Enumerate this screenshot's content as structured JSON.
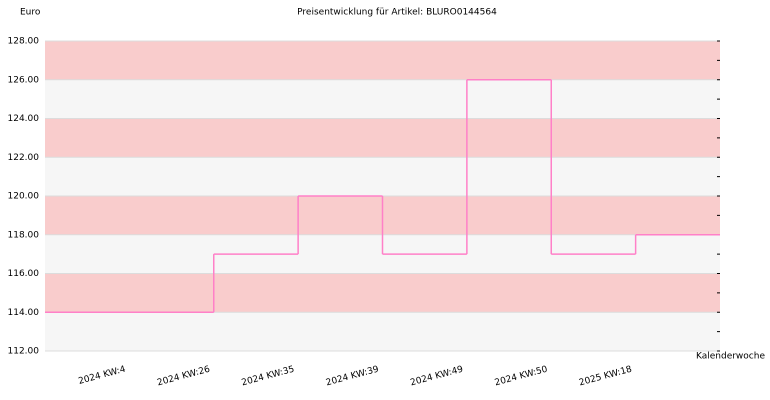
{
  "chart_data": {
    "type": "step",
    "title": "Preisentwicklung für Artikel: BLURO0144564",
    "y_label": "Euro",
    "x_label": "Kalenderwoche",
    "categories": [
      "2024 KW:4",
      "2024 KW:26",
      "2024 KW:35",
      "2024 KW:39",
      "2024 KW:49",
      "2024 KW:50",
      "2025 KW:18"
    ],
    "values": [
      114,
      117,
      120,
      117,
      126,
      117,
      118
    ],
    "color": "#ff80c8",
    "band_colors": [
      "#f6f6f6",
      "#f9cccc"
    ],
    "ylim": [
      112,
      128
    ],
    "yticks": [
      {
        "value": 112,
        "label": "112.00"
      },
      {
        "value": 114,
        "label": "114.00"
      },
      {
        "value": 116,
        "label": "116.00"
      },
      {
        "value": 118,
        "label": "118.00"
      },
      {
        "value": 120,
        "label": "120.00"
      },
      {
        "value": 122,
        "label": "122.00"
      },
      {
        "value": 124,
        "label": "124.00"
      },
      {
        "value": 126,
        "label": "126.00"
      },
      {
        "value": 128,
        "label": "128.00"
      }
    ],
    "minor_yticks": [
      113,
      115,
      117,
      119,
      121,
      123,
      125,
      127
    ]
  }
}
